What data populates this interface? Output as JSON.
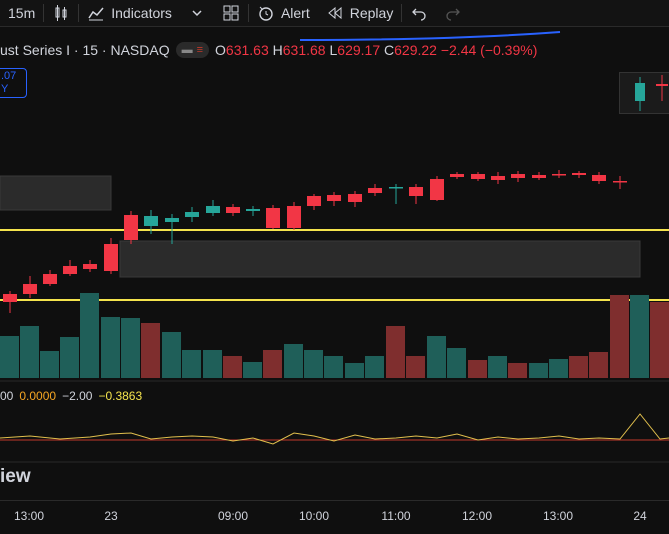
{
  "toolbar": {
    "interval": "15m",
    "indicators_label": "Indicators",
    "alert_label": "Alert",
    "replay_label": "Replay"
  },
  "legend": {
    "symbol": "ust Series I · 15 · NASDAQ",
    "o_label": "O",
    "o_value": "631.63",
    "h_label": "H",
    "h_value": "631.68",
    "l_label": "L",
    "l_value": "629.17",
    "c_label": "C",
    "c_value": "629.22",
    "change": "−2.44 (−0.39%)"
  },
  "price_badge": {
    "line1": ".07",
    "line2": "Y"
  },
  "indicator_legend": {
    "v1": "00",
    "v2": "0.0000",
    "v3": "−2.00",
    "v4": "−0.3863"
  },
  "section_title": "iew",
  "time_axis": {
    "labels": [
      "13:00",
      "23",
      "09:00",
      "10:00",
      "11:00",
      "12:00",
      "13:00",
      "24"
    ]
  },
  "colors": {
    "up": "#26a69a",
    "down": "#f23645",
    "hline": "#f5e44d",
    "vol_up": "#1f5f59",
    "vol_down": "#7f2e2e",
    "osc": "#e2c04d"
  }
}
